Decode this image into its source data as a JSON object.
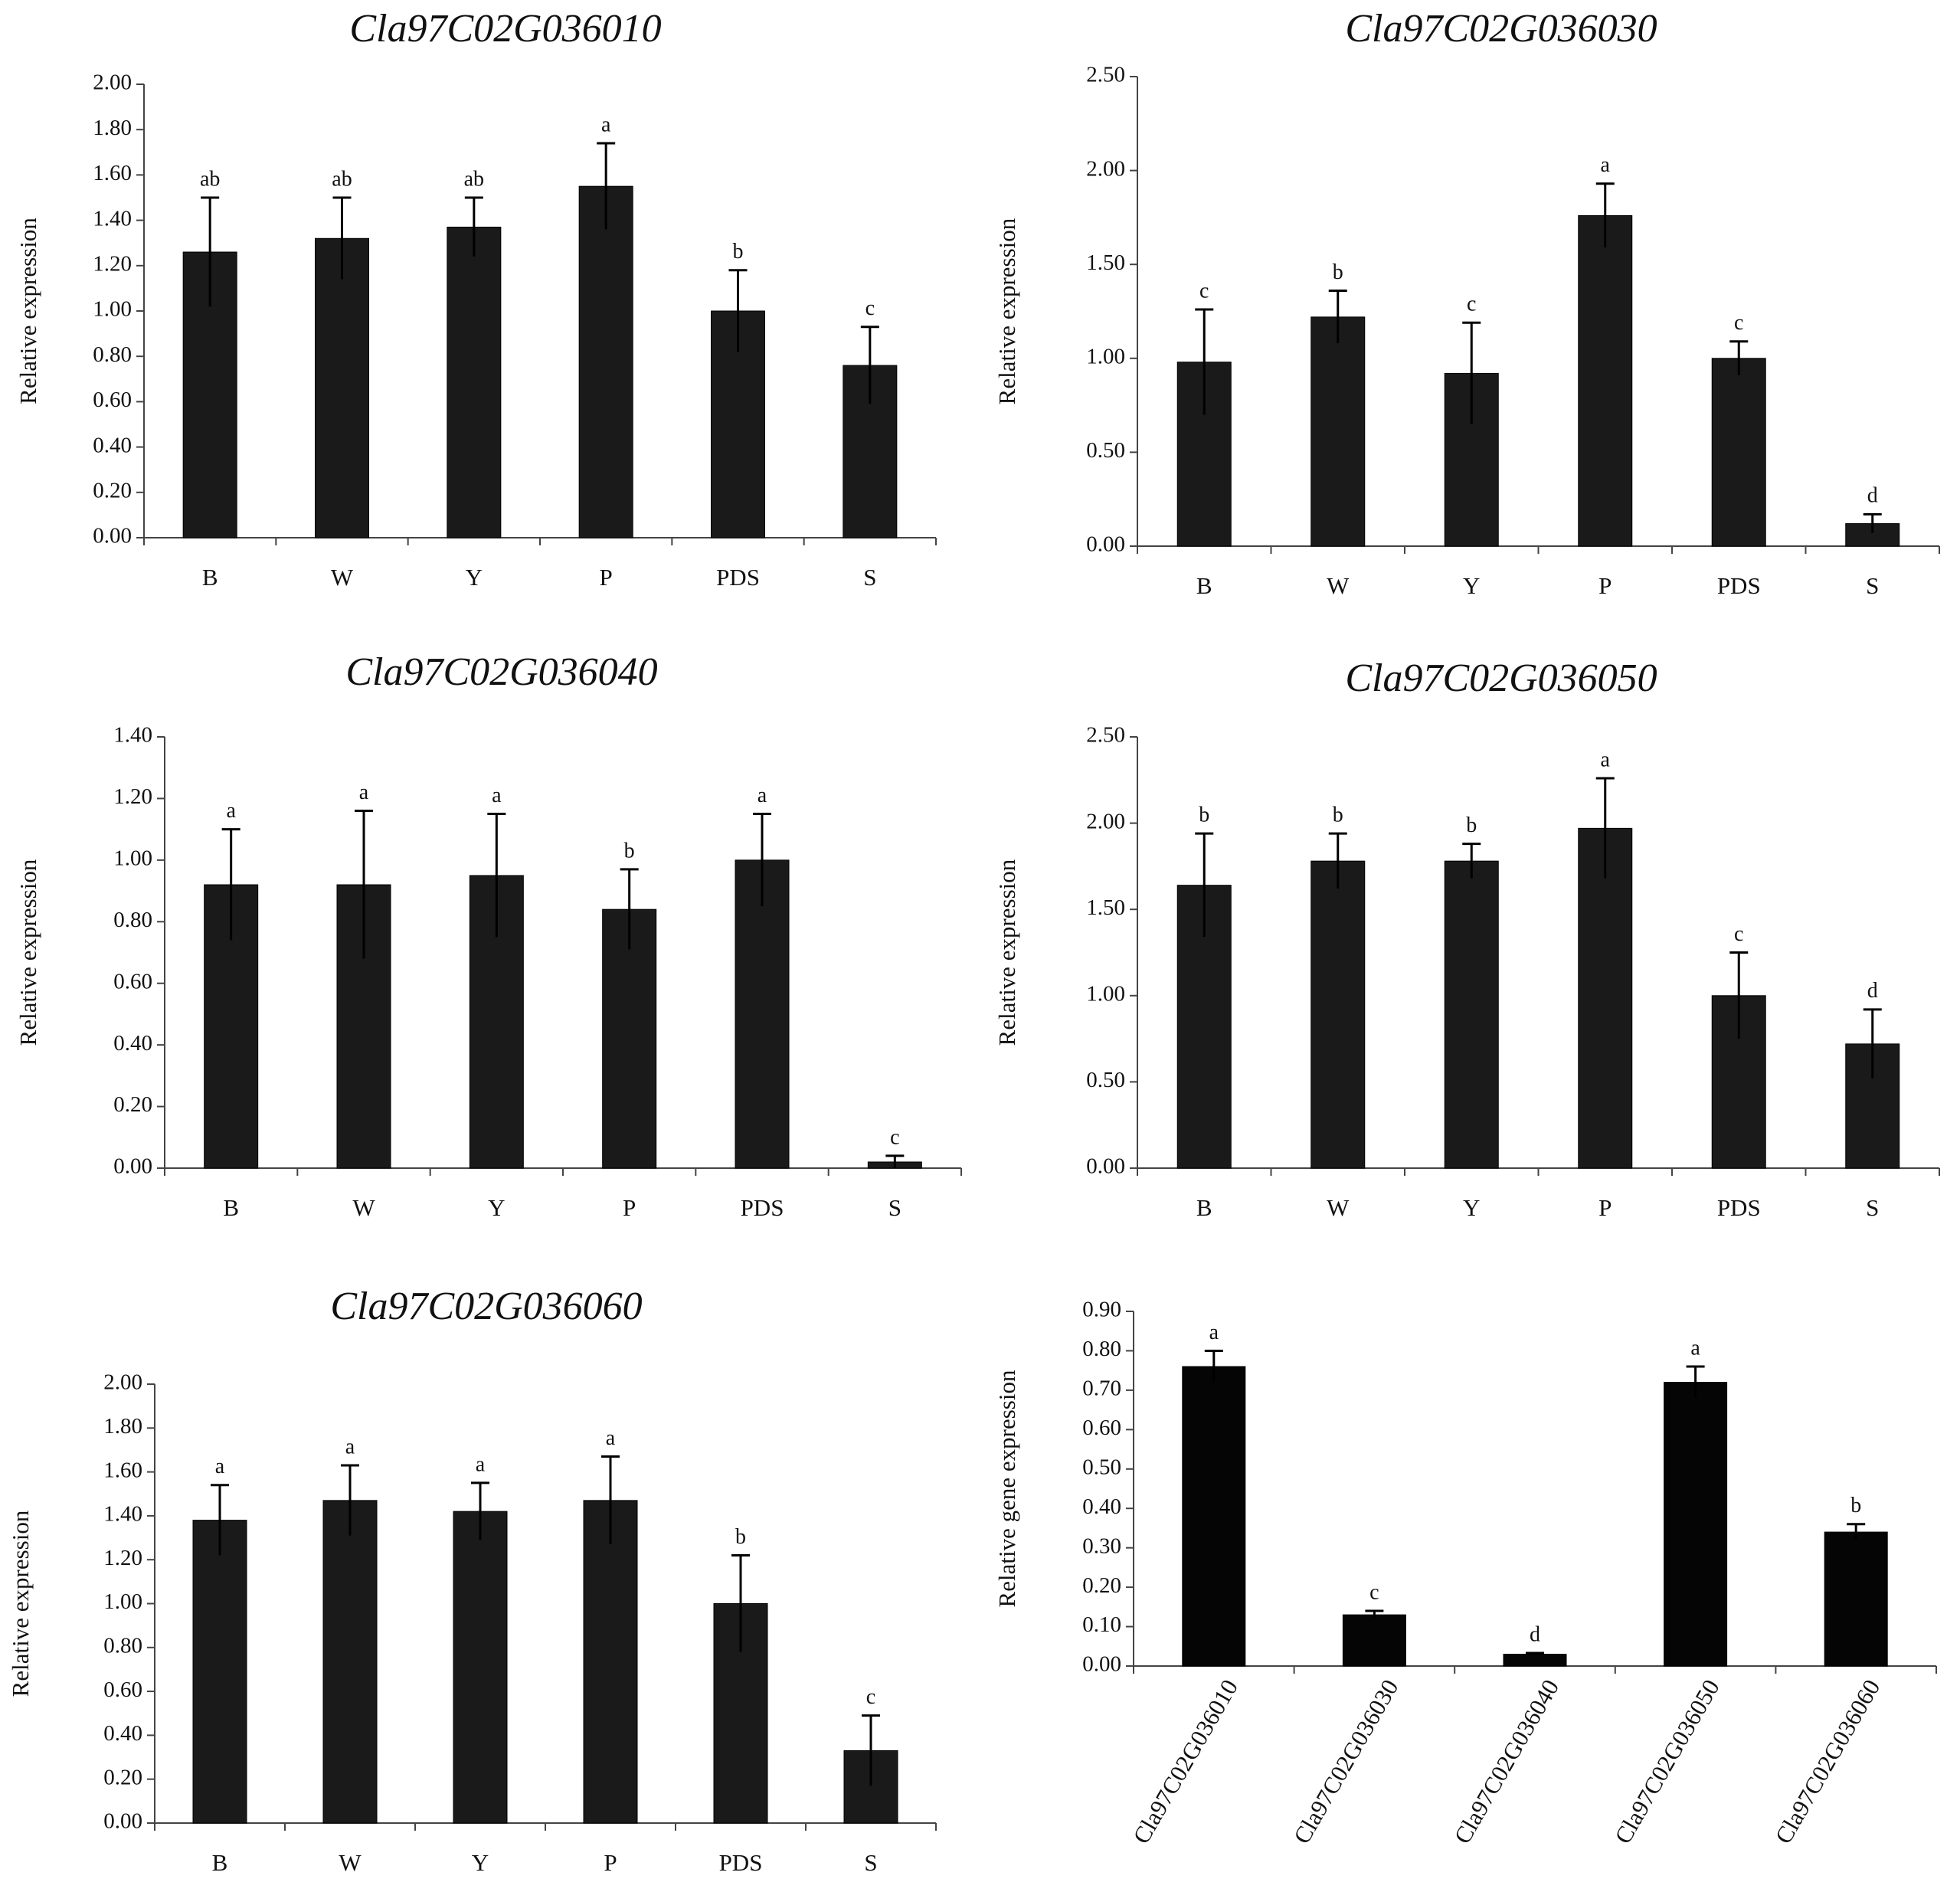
{
  "chart_data": [
    {
      "type": "bar",
      "title": "Cla97C02G036010",
      "ylabel": "Relative expression",
      "xlabel": "",
      "categories": [
        "B",
        "W",
        "Y",
        "P",
        "PDS",
        "S"
      ],
      "values": [
        1.26,
        1.32,
        1.37,
        1.55,
        1.0,
        0.76
      ],
      "errors": [
        0.24,
        0.18,
        0.13,
        0.19,
        0.18,
        0.17
      ],
      "significance": [
        "ab",
        "ab",
        "ab",
        "a",
        "b",
        "c"
      ],
      "ylim": [
        0,
        2.0
      ],
      "yticks": [
        "0.00",
        "0.20",
        "0.40",
        "0.60",
        "0.80",
        "1.00",
        "1.20",
        "1.40",
        "1.60",
        "1.80",
        "2.00"
      ],
      "bar_color": "#1a1a1a"
    },
    {
      "type": "bar",
      "title": "Cla97C02G036030",
      "ylabel": "Relative expression",
      "xlabel": "",
      "categories": [
        "B",
        "W",
        "Y",
        "P",
        "PDS",
        "S"
      ],
      "values": [
        0.98,
        1.22,
        0.92,
        1.76,
        1.0,
        0.12
      ],
      "errors": [
        0.28,
        0.14,
        0.27,
        0.17,
        0.09,
        0.05
      ],
      "significance": [
        "c",
        "b",
        "c",
        "a",
        "c",
        "d"
      ],
      "ylim": [
        0,
        2.5
      ],
      "yticks": [
        "0.00",
        "0.50",
        "1.00",
        "1.50",
        "2.00",
        "2.50"
      ],
      "bar_color": "#1a1a1a"
    },
    {
      "type": "bar",
      "title": "Cla97C02G036040",
      "ylabel": "Relative expression",
      "xlabel": "",
      "categories": [
        "B",
        "W",
        "Y",
        "P",
        "PDS",
        "S"
      ],
      "values": [
        0.92,
        0.92,
        0.95,
        0.84,
        1.0,
        0.02
      ],
      "errors": [
        0.18,
        0.24,
        0.2,
        0.13,
        0.15,
        0.02
      ],
      "significance": [
        "a",
        "a",
        "a",
        "b",
        "a",
        "c"
      ],
      "ylim": [
        0,
        1.4
      ],
      "yticks": [
        "0.00",
        "0.20",
        "0.40",
        "0.60",
        "0.80",
        "1.00",
        "1.20",
        "1.40"
      ],
      "bar_color": "#1a1a1a"
    },
    {
      "type": "bar",
      "title": "Cla97C02G036050",
      "ylabel": "Relative expression",
      "xlabel": "",
      "categories": [
        "B",
        "W",
        "Y",
        "P",
        "PDS",
        "S"
      ],
      "values": [
        1.64,
        1.78,
        1.78,
        1.97,
        1.0,
        0.72
      ],
      "errors": [
        0.3,
        0.16,
        0.1,
        0.29,
        0.25,
        0.2
      ],
      "significance": [
        "b",
        "b",
        "b",
        "a",
        "c",
        "d"
      ],
      "ylim": [
        0,
        2.5
      ],
      "yticks": [
        "0.00",
        "0.50",
        "1.00",
        "1.50",
        "2.00",
        "2.50"
      ],
      "bar_color": "#1a1a1a"
    },
    {
      "type": "bar",
      "title": "Cla97C02G036060",
      "ylabel": "Relative expression",
      "xlabel": "",
      "categories": [
        "B",
        "W",
        "Y",
        "P",
        "PDS",
        "S"
      ],
      "values": [
        1.38,
        1.47,
        1.42,
        1.47,
        1.0,
        0.33
      ],
      "errors": [
        0.16,
        0.16,
        0.13,
        0.2,
        0.22,
        0.16
      ],
      "significance": [
        "a",
        "a",
        "a",
        "a",
        "b",
        "c"
      ],
      "ylim": [
        0,
        2.0
      ],
      "yticks": [
        "0.00",
        "0.20",
        "0.40",
        "0.60",
        "0.80",
        "1.00",
        "1.20",
        "1.40",
        "1.60",
        "1.80",
        "2.00"
      ],
      "bar_color": "#1a1a1a"
    },
    {
      "type": "bar",
      "title": "",
      "ylabel": "Relative gene expression",
      "xlabel": "",
      "categories": [
        "Cla97C02G036010",
        "Cla97C02G036030",
        "Cla97C02G036040",
        "Cla97C02G036050",
        "Cla97C02G036060"
      ],
      "values": [
        0.76,
        0.13,
        0.03,
        0.72,
        0.34
      ],
      "errors": [
        0.04,
        0.01,
        0.003,
        0.04,
        0.02
      ],
      "significance": [
        "a",
        "c",
        "d",
        "a",
        "b"
      ],
      "ylim": [
        0,
        0.9
      ],
      "yticks": [
        "0.00",
        "0.10",
        "0.20",
        "0.30",
        "0.40",
        "0.50",
        "0.60",
        "0.70",
        "0.80",
        "0.90"
      ],
      "bar_color": "#050505"
    }
  ]
}
